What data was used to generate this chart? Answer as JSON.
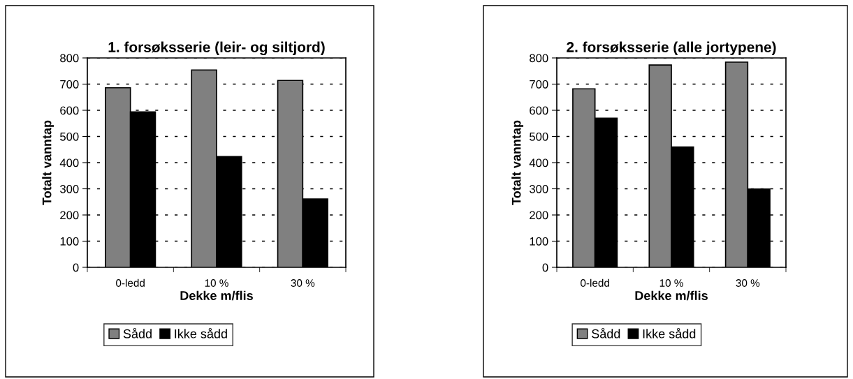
{
  "chart_data": [
    {
      "type": "bar",
      "title": "1. forsøksserie (leir- og siltjord)",
      "xlabel": "Dekke m/flis",
      "ylabel": "Totalt vanntap",
      "categories": [
        "0-ledd",
        "10 %",
        "30 %"
      ],
      "series": [
        {
          "name": "Sådd",
          "color": "#808080",
          "values": [
            686,
            754,
            714
          ]
        },
        {
          "name": "Ikke sådd",
          "color": "#000000",
          "values": [
            594,
            423,
            261
          ]
        }
      ],
      "ylim": [
        0,
        800
      ],
      "yticks": [
        0,
        100,
        200,
        300,
        400,
        500,
        600,
        700,
        800
      ],
      "grid": "y",
      "legend": "bottom"
    },
    {
      "type": "bar",
      "title": "2. forsøksserie (alle jortypene)",
      "xlabel": "Dekke m/flis",
      "ylabel": "Totalt vanntap",
      "categories": [
        "0-ledd",
        "10 %",
        "30 %"
      ],
      "series": [
        {
          "name": "Sådd",
          "color": "#808080",
          "values": [
            682,
            773,
            784
          ]
        },
        {
          "name": "Ikke sådd",
          "color": "#000000",
          "values": [
            570,
            460,
            299
          ]
        }
      ],
      "ylim": [
        0,
        800
      ],
      "yticks": [
        0,
        100,
        200,
        300,
        400,
        500,
        600,
        700,
        800
      ],
      "grid": "y",
      "legend": "bottom"
    }
  ]
}
